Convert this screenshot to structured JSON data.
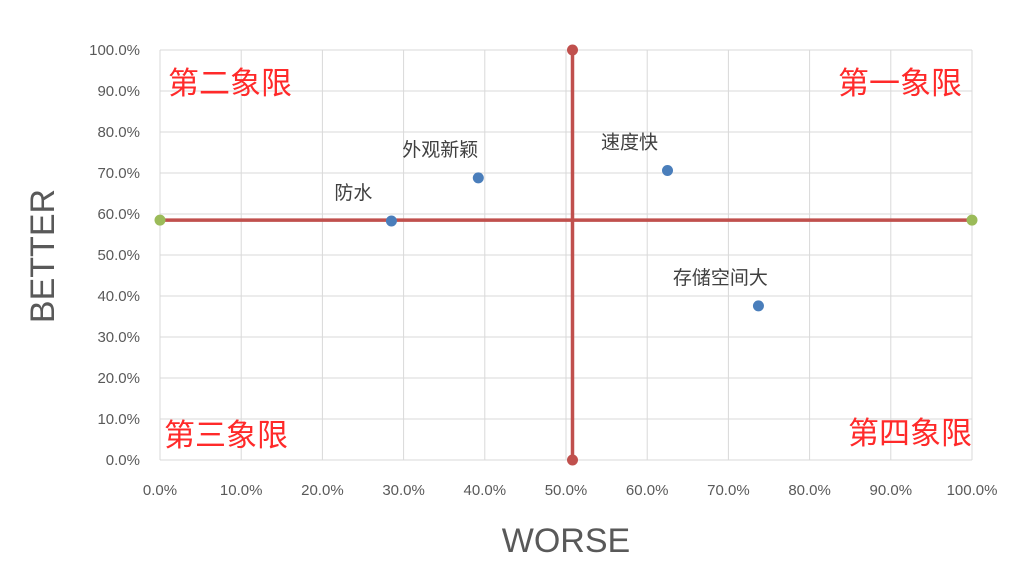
{
  "chart_data": {
    "type": "scatter",
    "xlabel": "WORSE",
    "ylabel": "BETTER",
    "xlim": [
      0,
      1
    ],
    "ylim": [
      0,
      1
    ],
    "x_ticks": [
      "0.0%",
      "10.0%",
      "20.0%",
      "30.0%",
      "40.0%",
      "50.0%",
      "60.0%",
      "70.0%",
      "80.0%",
      "90.0%",
      "100.0%"
    ],
    "y_ticks": [
      "0.0%",
      "10.0%",
      "20.0%",
      "30.0%",
      "40.0%",
      "50.0%",
      "60.0%",
      "70.0%",
      "80.0%",
      "90.0%",
      "100.0%"
    ],
    "grid": true,
    "points": [
      {
        "label": "防水",
        "x": 0.285,
        "y": 0.583
      },
      {
        "label": "外观新颖",
        "x": 0.392,
        "y": 0.688
      },
      {
        "label": "速度快",
        "x": 0.625,
        "y": 0.706
      },
      {
        "label": "存储空间大",
        "x": 0.737,
        "y": 0.376
      }
    ],
    "divider_x": 0.508,
    "divider_y": 0.585,
    "quadrants": {
      "q1": "第一象限",
      "q2": "第二象限",
      "q3": "第三象限",
      "q4": "第四象限"
    },
    "colors": {
      "points": "#4a7ebb",
      "divider": "#c0504d",
      "divider_end": "#9bbb59",
      "grid": "#d9d9d9",
      "quadrant_text": "#ff2a2a"
    }
  }
}
